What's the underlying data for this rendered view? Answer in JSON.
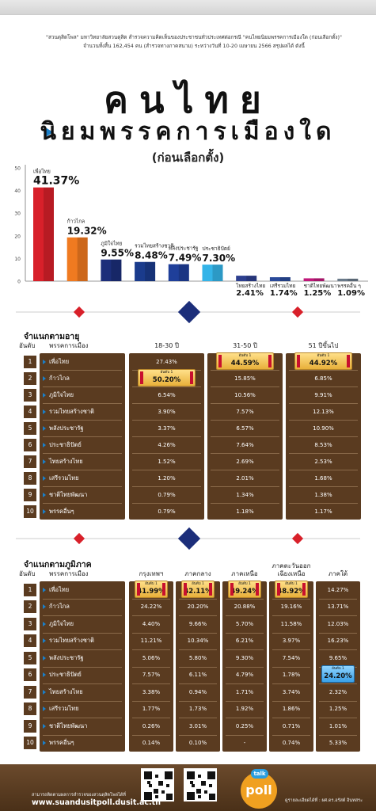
{
  "intro": {
    "line1": "\"สวนดุสิตโพล\" มหาวิทยาลัยสวนดุสิต สำรวจความคิดเห็นของประชาชนทั่วประเทศต่อกรณี \"คนไทยนิยมพรรคการเมืองใด (ก่อนเลือกตั้ง)\"",
    "line2": "จำนวนทั้งสิ้น 162,454 คน (สำรวจทางภาคสนาม) ระหว่างวันที่ 10-20 เมษายน 2566 สรุปผลได้ ดังนี้"
  },
  "title": {
    "line1": "คนไทย",
    "line2": "นิยมพรรคการเมืองใด",
    "line3": "(ก่อนเลือกตั้ง)"
  },
  "chart_data": [
    {
      "type": "bar",
      "categories": [
        "เพื่อไทย",
        "ก้าวไกล",
        "ภูมิใจไทย",
        "รวมไทยสร้างชาติ",
        "พลังประชารัฐ",
        "ประชาธิปัตย์",
        "ไทยสร้างไทย",
        "เสรีรวมไทย",
        "ชาติไทยพัฒนา",
        "พรรคอื่น ๆ"
      ],
      "values": [
        41.37,
        19.32,
        9.55,
        8.48,
        7.49,
        7.3,
        2.41,
        1.74,
        1.25,
        1.09
      ],
      "value_labels": [
        "41.37%",
        "19.32%",
        "9.55%",
        "8.48%",
        "7.49%",
        "7.30%",
        "2.41%",
        "1.74%",
        "1.25%",
        "1.09%"
      ],
      "y_ticks": [
        "0",
        "10",
        "20",
        "30",
        "40",
        "50"
      ],
      "ylim": [
        0,
        50
      ],
      "colors": [
        "#d8202a",
        "#f07a20",
        "#1c2e7a",
        "#1a3b8c",
        "#1f3f9a",
        "#34b4e8",
        "#2d3f8f",
        "#2a4a9a",
        "#c0187a",
        "#6a7a8a"
      ]
    },
    {
      "type": "table",
      "title": "จำแนกตามอายุ",
      "row_header": "อันดับ",
      "party_header": "พรรคการเมือง",
      "columns": [
        "18-30 ปี",
        "31-50 ปี",
        "51 ปีขึ้นไป"
      ],
      "rows": [
        {
          "rank": "1",
          "party": "เพื่อไทย",
          "values": [
            "27.43%",
            "44.59%",
            "44.92%"
          ]
        },
        {
          "rank": "2",
          "party": "ก้าวไกล",
          "values": [
            "50.20%",
            "15.85%",
            "6.85%"
          ]
        },
        {
          "rank": "3",
          "party": "ภูมิใจไทย",
          "values": [
            "6.54%",
            "10.56%",
            "9.91%"
          ]
        },
        {
          "rank": "4",
          "party": "รวมไทยสร้างชาติ",
          "values": [
            "3.90%",
            "7.57%",
            "12.13%"
          ]
        },
        {
          "rank": "5",
          "party": "พลังประชารัฐ",
          "values": [
            "3.37%",
            "6.57%",
            "10.90%"
          ]
        },
        {
          "rank": "6",
          "party": "ประชาธิปัตย์",
          "values": [
            "4.26%",
            "7.64%",
            "8.53%"
          ]
        },
        {
          "rank": "7",
          "party": "ไทยสร้างไทย",
          "values": [
            "1.52%",
            "2.69%",
            "2.53%"
          ]
        },
        {
          "rank": "8",
          "party": "เสรีรวมไทย",
          "values": [
            "1.20%",
            "2.01%",
            "1.68%"
          ]
        },
        {
          "rank": "9",
          "party": "ชาติไทยพัฒนา",
          "values": [
            "0.79%",
            "1.34%",
            "1.38%"
          ]
        },
        {
          "rank": "10",
          "party": "พรรคอื่นๆ",
          "values": [
            "0.79%",
            "1.18%",
            "1.17%"
          ]
        }
      ],
      "highlights": [
        [
          1,
          0
        ],
        [
          0,
          1
        ],
        [
          0,
          2
        ]
      ]
    },
    {
      "type": "table",
      "title": "จำแนกตามภูมิภาค",
      "row_header": "อันดับ",
      "party_header": "พรรคการเมือง",
      "columns": [
        "กรุงเทพฯ",
        "ภาคกลาง",
        "ภาคเหนือ",
        "ภาคตะวันออกเฉียงเหนือ",
        "ภาคใต้"
      ],
      "columns_display": [
        [
          "กรุงเทพฯ"
        ],
        [
          "ภาคกลาง"
        ],
        [
          "ภาคเหนือ"
        ],
        [
          "ภาคตะวันออก",
          "เฉียงเหนือ"
        ],
        [
          "ภาคใต้"
        ]
      ],
      "rows": [
        {
          "rank": "1",
          "party": "เพื่อไทย",
          "values": [
            "41.99%",
            "42.11%",
            "49.24%",
            "48.92%",
            "14.27%"
          ]
        },
        {
          "rank": "2",
          "party": "ก้าวไกล",
          "values": [
            "24.22%",
            "20.20%",
            "20.88%",
            "19.16%",
            "13.71%"
          ]
        },
        {
          "rank": "3",
          "party": "ภูมิใจไทย",
          "values": [
            "4.40%",
            "9.66%",
            "5.70%",
            "11.58%",
            "12.03%"
          ]
        },
        {
          "rank": "4",
          "party": "รวมไทยสร้างชาติ",
          "values": [
            "11.21%",
            "10.34%",
            "6.21%",
            "3.97%",
            "16.23%"
          ]
        },
        {
          "rank": "5",
          "party": "พลังประชารัฐ",
          "values": [
            "5.06%",
            "5.80%",
            "9.30%",
            "7.54%",
            "9.65%"
          ]
        },
        {
          "rank": "6",
          "party": "ประชาธิปัตย์",
          "values": [
            "7.57%",
            "6.11%",
            "4.79%",
            "1.78%",
            "24.20%"
          ]
        },
        {
          "rank": "7",
          "party": "ไทยสร้างไทย",
          "values": [
            "3.38%",
            "0.94%",
            "1.71%",
            "3.74%",
            "2.32%"
          ]
        },
        {
          "rank": "8",
          "party": "เสรีรวมไทย",
          "values": [
            "1.77%",
            "1.73%",
            "1.92%",
            "1.86%",
            "1.25%"
          ]
        },
        {
          "rank": "9",
          "party": "ชาติไทยพัฒนา",
          "values": [
            "0.26%",
            "3.01%",
            "0.25%",
            "0.71%",
            "1.01%"
          ]
        },
        {
          "rank": "10",
          "party": "พรรคอื่นๆ",
          "values": [
            "0.14%",
            "0.10%",
            "-",
            "0.74%",
            "5.33%"
          ]
        }
      ],
      "highlights": [
        [
          0,
          0
        ],
        [
          0,
          1
        ],
        [
          0,
          2
        ],
        [
          0,
          3
        ],
        [
          5,
          4
        ]
      ]
    }
  ],
  "badge_label": "อันดับ 1",
  "footer": {
    "line1": "สามารถติดตามผลการสำรวจของสวนดุสิตโพลได้ที่",
    "site": "www.suandusitpoll.dusit.ac.th",
    "right": "ดูรายละเอียดได้ที่ : ผศ.ดร.อรัสต์ อินทสระ",
    "logo": "poll",
    "logo_talk": "talk"
  },
  "colors": {
    "table_brown": "#5a3b20",
    "accent_blue": "#1a7fc9",
    "diamond_red": "#d8202a",
    "diamond_navy": "#1c2e7a",
    "gold": "#e8b03a"
  }
}
